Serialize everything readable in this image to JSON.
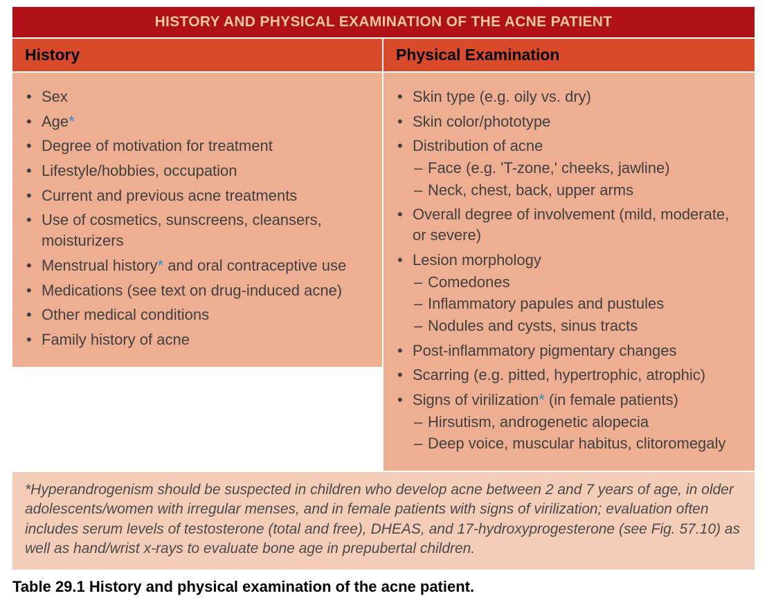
{
  "colors": {
    "title_bg": "#b01116",
    "title_text": "#f9c7a2",
    "header_bg": "#d84a2a",
    "header_text": "#000000",
    "body_bg": "#eeae92",
    "body_text": "#404040",
    "footnote_bg": "#f4cdb9",
    "footnote_text": "#4a4a4a",
    "asterisk": "#1f8fd6",
    "caption_text": "#000000"
  },
  "typography": {
    "title_fontsize": 21,
    "header_fontsize": 23,
    "body_fontsize": 22,
    "footnote_fontsize": 21,
    "caption_fontsize": 22
  },
  "title": "HISTORY AND PHYSICAL EXAMINATION OF THE ACNE PATIENT",
  "columns": {
    "history": {
      "header": "History",
      "items": [
        {
          "text": "Sex"
        },
        {
          "text": "Age",
          "asterisk": true
        },
        {
          "text": "Degree of motivation for treatment"
        },
        {
          "text": "Lifestyle/hobbies, occupation"
        },
        {
          "text": "Current and previous acne treatments"
        },
        {
          "text": "Use of cosmetics, sunscreens, cleansers, moisturizers"
        },
        {
          "text": "Menstrual history",
          "asterisk": true,
          "suffix": " and oral contraceptive use"
        },
        {
          "text": "Medications (see text on drug-induced acne)"
        },
        {
          "text": "Other medical conditions"
        },
        {
          "text": "Family history of acne"
        }
      ]
    },
    "exam": {
      "header": "Physical Examination",
      "items": [
        {
          "text": "Skin type (e.g. oily vs. dry)"
        },
        {
          "text": "Skin color/phototype"
        },
        {
          "text": "Distribution of acne",
          "sub": [
            "Face (e.g. 'T-zone,' cheeks, jawline)",
            "Neck, chest, back, upper arms"
          ]
        },
        {
          "text": "Overall degree of involvement (mild, moderate, or severe)"
        },
        {
          "text": "Lesion morphology",
          "sub": [
            "Comedones",
            "Inflammatory papules and pustules",
            "Nodules and cysts, sinus tracts"
          ]
        },
        {
          "text": "Post-inflammatory pigmentary changes"
        },
        {
          "text": "Scarring (e.g. pitted, hypertrophic, atrophic)"
        },
        {
          "text": "Signs of virilization",
          "asterisk": true,
          "suffix": " (in female patients)",
          "sub": [
            "Hirsutism, androgenetic alopecia",
            "Deep voice, muscular habitus, clitoromegaly"
          ]
        }
      ]
    }
  },
  "footnote": "*Hyperandrogenism should be suspected in children who develop acne between 2 and 7 years of age, in older adolescents/women with irregular menses, and in female patients with signs of virilization; evaluation often includes serum levels of testosterone (total and free), DHEAS, and 17-hydroxyprogesterone (see Fig. 57.10) as well as hand/wrist x-rays to evaluate bone age in prepubertal children.",
  "caption_bold": "Table 29.1 History and physical examination of the acne patient."
}
